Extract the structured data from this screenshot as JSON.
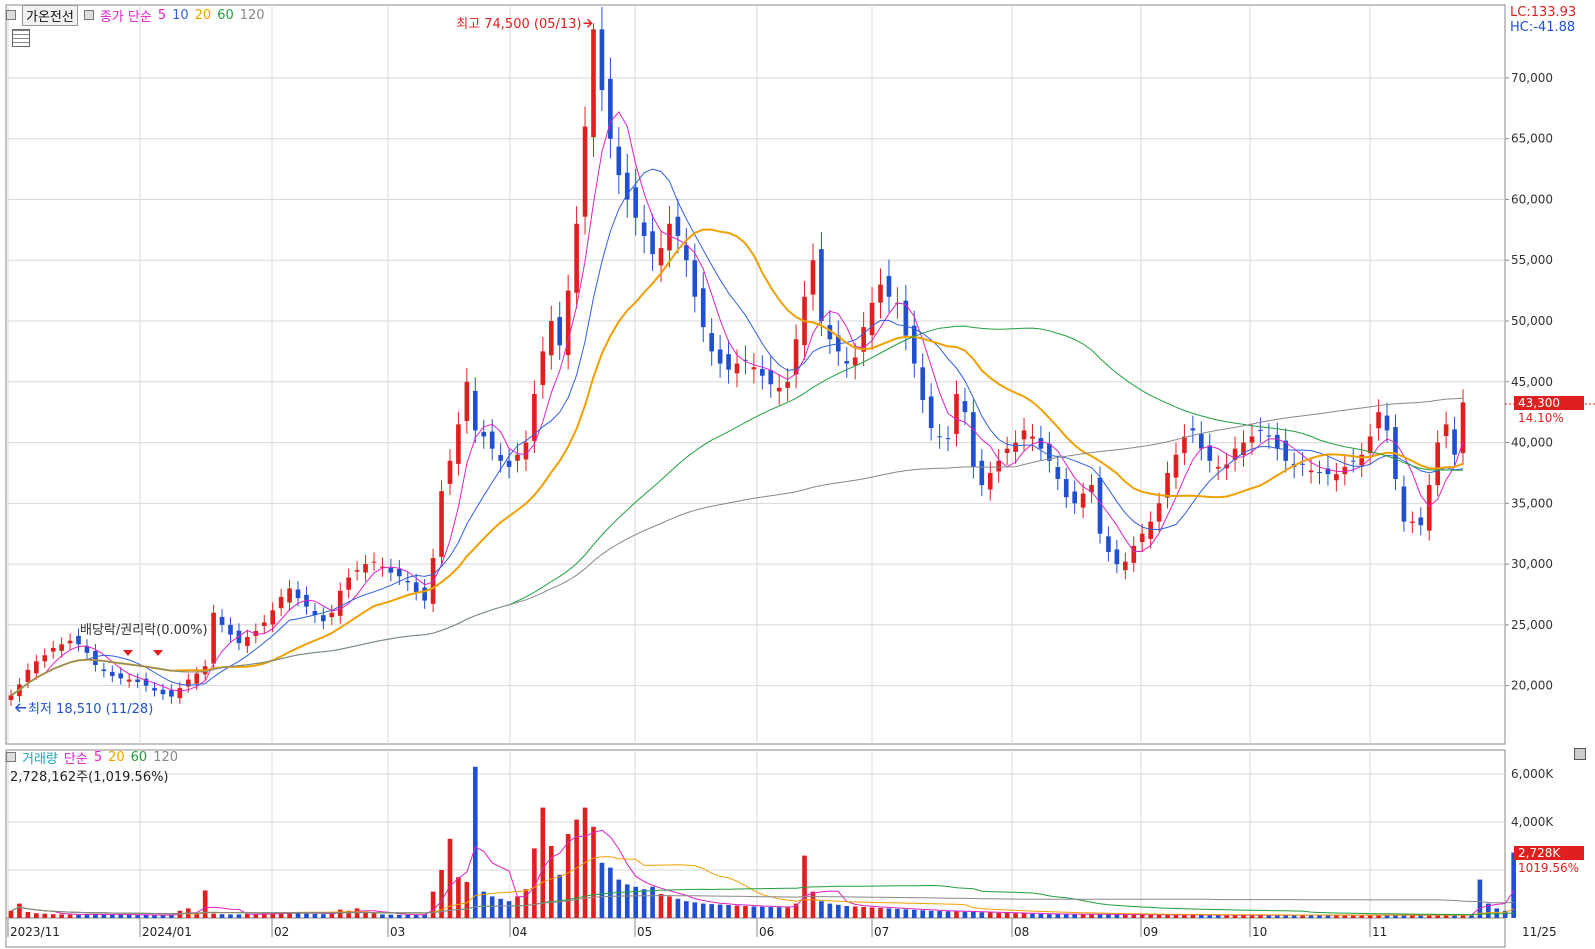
{
  "header": {
    "stock_name": "가온전선",
    "ma_label": "종가 단순",
    "ma_periods": [
      "5",
      "10",
      "20",
      "60",
      "120"
    ],
    "ma_colors": [
      "#e020c8",
      "#3060e0",
      "#f0a000",
      "#20a040",
      "#888888"
    ],
    "lc_label": "LC:133.93",
    "hc_label": "HC:-41.88"
  },
  "volume_header": {
    "title": "거래량",
    "ma_label": "단순",
    "ma_periods": [
      "5",
      "20",
      "60",
      "120"
    ],
    "current_volume": "2,728,162주(1,019.56%)"
  },
  "annotations": {
    "high_label": "최고 74,500 (05/13)",
    "low_label": "최저 18,510 (11/28)",
    "event_label": "배당락/권리락(0.00%)"
  },
  "price_tag": {
    "value": "43,300",
    "change": "14.10%"
  },
  "volume_tag": {
    "value": "2,728K",
    "change": "1019.56%"
  },
  "x_axis": [
    "2023/11",
    "2024/01",
    "02",
    "03",
    "04",
    "05",
    "06",
    "07",
    "08",
    "09",
    "10",
    "11",
    "11/25"
  ],
  "colors": {
    "up": "#e02020",
    "down": "#2050d0",
    "grid": "#d8d8d8",
    "tag": "#e02020"
  },
  "chart_data": {
    "type": "candlestick",
    "price_axis": {
      "ticks": [
        "20,000",
        "25,000",
        "30,000",
        "35,000",
        "40,000",
        "45,000",
        "50,000",
        "55,000",
        "60,000",
        "65,000",
        "70,000"
      ],
      "ylim": [
        15200,
        76000
      ]
    },
    "volume_axis": {
      "ticks": [
        "4,000K",
        "6,000K"
      ],
      "ylim": [
        0,
        7000
      ]
    },
    "close": [
      19200,
      20100,
      21300,
      22000,
      22500,
      23100,
      23400,
      23700,
      23400,
      22700,
      21700,
      21200,
      20800,
      20600,
      20500,
      20300,
      20000,
      19600,
      19300,
      19100,
      19800,
      20500,
      21000,
      21600,
      26000,
      25000,
      24200,
      23500,
      24000,
      24500,
      25200,
      26200,
      27300,
      28000,
      27200,
      26500,
      25800,
      25300,
      26000,
      27800,
      28900,
      29500,
      30000,
      30200,
      29800,
      29300,
      29000,
      28500,
      27700,
      27000,
      30500,
      36000,
      38500,
      41500,
      45000,
      41000,
      40500,
      39500,
      38500,
      38000,
      39000,
      40000,
      44000,
      47500,
      50000,
      48000,
      52500,
      58000,
      66000,
      74000,
      69000,
      65000,
      62000,
      60000,
      58500,
      57000,
      55500,
      56000,
      58000,
      57000,
      55000,
      52000,
      49500,
      47500,
      46500,
      46000,
      46500,
      46800,
      46200,
      45500,
      44800,
      44500,
      45000,
      48500,
      52000,
      55000,
      50000,
      48500,
      47500,
      46500,
      47000,
      49500,
      51500,
      53000,
      52000,
      51500,
      48800,
      46500,
      43500,
      41200,
      40500,
      40300,
      44000,
      42500,
      38000,
      36500,
      37500,
      38500,
      39500,
      40000,
      41000,
      40500,
      39500,
      38500,
      37000,
      35500,
      35000,
      35800,
      36500,
      32500,
      31000,
      30000,
      30200,
      31500,
      32500,
      33500,
      35000,
      37500,
      39000,
      40500,
      41000,
      39500,
      38500,
      38000,
      38200,
      39500,
      40000,
      40500,
      41000,
      40500,
      39500,
      38500,
      38000,
      38200,
      37700,
      37500,
      37400,
      37400,
      38000,
      38500,
      39000,
      40500,
      42500,
      41000,
      37000,
      33500,
      33500,
      33200,
      36500,
      40000,
      41500,
      39000,
      43300
    ],
    "highs": [
      {
        "i": 69,
        "v": 74500
      }
    ],
    "lows": [
      {
        "i": 19,
        "v": 18510
      }
    ],
    "volume_k": [
      300,
      600,
      250,
      200,
      180,
      160,
      150,
      140,
      130,
      160,
      170,
      150,
      140,
      140,
      130,
      120,
      130,
      120,
      110,
      120,
      300,
      400,
      200,
      1150,
      180,
      160,
      150,
      150,
      170,
      160,
      180,
      200,
      210,
      240,
      200,
      180,
      170,
      160,
      200,
      350,
      300,
      400,
      250,
      200,
      150,
      140,
      130,
      130,
      140,
      150,
      1100,
      2000,
      3300,
      1700,
      1500,
      6300,
      1100,
      900,
      800,
      700,
      900,
      1200,
      2900,
      4600,
      3000,
      1800,
      3500,
      4100,
      4600,
      3800,
      2300,
      2100,
      1600,
      1400,
      1300,
      1200,
      1300,
      1000,
      900,
      800,
      700,
      650,
      600,
      580,
      560,
      540,
      520,
      500,
      480,
      470,
      460,
      450,
      440,
      600,
      2600,
      1100,
      700,
      600,
      550,
      500,
      480,
      460,
      440,
      420,
      400,
      380,
      360,
      340,
      320,
      300,
      290,
      280,
      270,
      260,
      250,
      240,
      230,
      220,
      210,
      200,
      190,
      180,
      170,
      160,
      160,
      160,
      160,
      160,
      150,
      150,
      150,
      150,
      140,
      140,
      140,
      140,
      140,
      130,
      130,
      130,
      130,
      130,
      120,
      120,
      120,
      120,
      120,
      120,
      120,
      120,
      120,
      120,
      120,
      120,
      120,
      120,
      120,
      120,
      120,
      120,
      120,
      120,
      120,
      120,
      120,
      120,
      120,
      120,
      120,
      120,
      120,
      120,
      120,
      120,
      1600,
      600,
      400,
      300,
      2728
    ]
  }
}
